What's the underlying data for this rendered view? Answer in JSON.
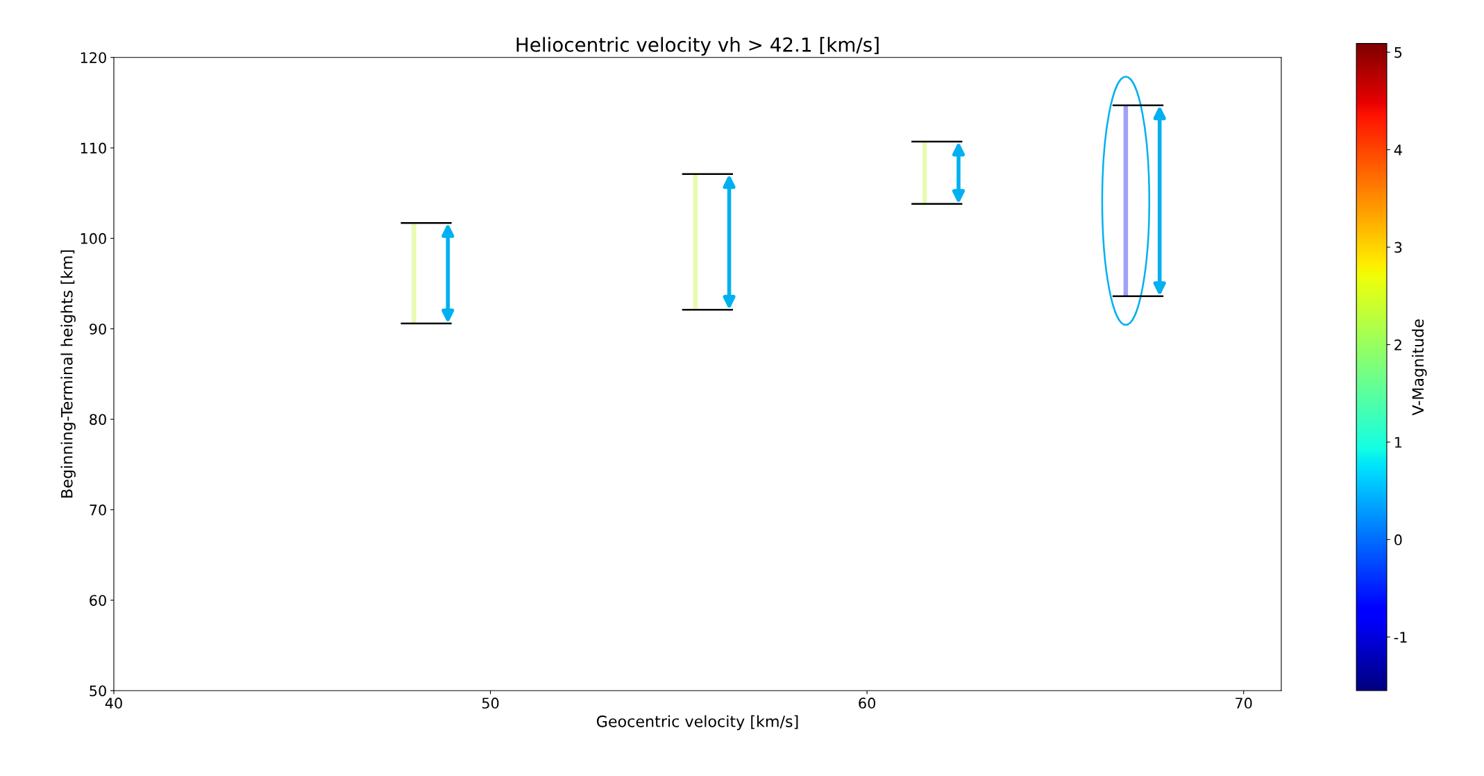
{
  "chart_data": {
    "type": "bar",
    "title": "Heliocentric velocity vh > 42.1 [km/s]",
    "xlabel": "Geocentric velocity [km/s]",
    "ylabel": "Beginning-Terminal heights [km]",
    "clabel": "V-Magnitude",
    "x": [
      47.97,
      55.44,
      61.53,
      66.87
    ],
    "base": [
      90.6,
      92.1,
      103.8,
      93.6
    ],
    "values": [
      11.1,
      15.0,
      6.9,
      21.1
    ],
    "colors": [
      "#e8fbb0",
      "#e8fbb0",
      "#e8fbb0",
      "#a0a0fa"
    ],
    "xlim": [
      40,
      71
    ],
    "xticks": [
      40,
      50,
      60,
      70
    ],
    "ylim": [
      50,
      120
    ],
    "yticks": [
      50,
      60,
      70,
      80,
      90,
      100,
      110,
      120
    ],
    "clim": [
      -1.55,
      5.09
    ],
    "cticks": [
      -1,
      0,
      1,
      2,
      3,
      4,
      5
    ],
    "grid": false,
    "legend": false
  }
}
